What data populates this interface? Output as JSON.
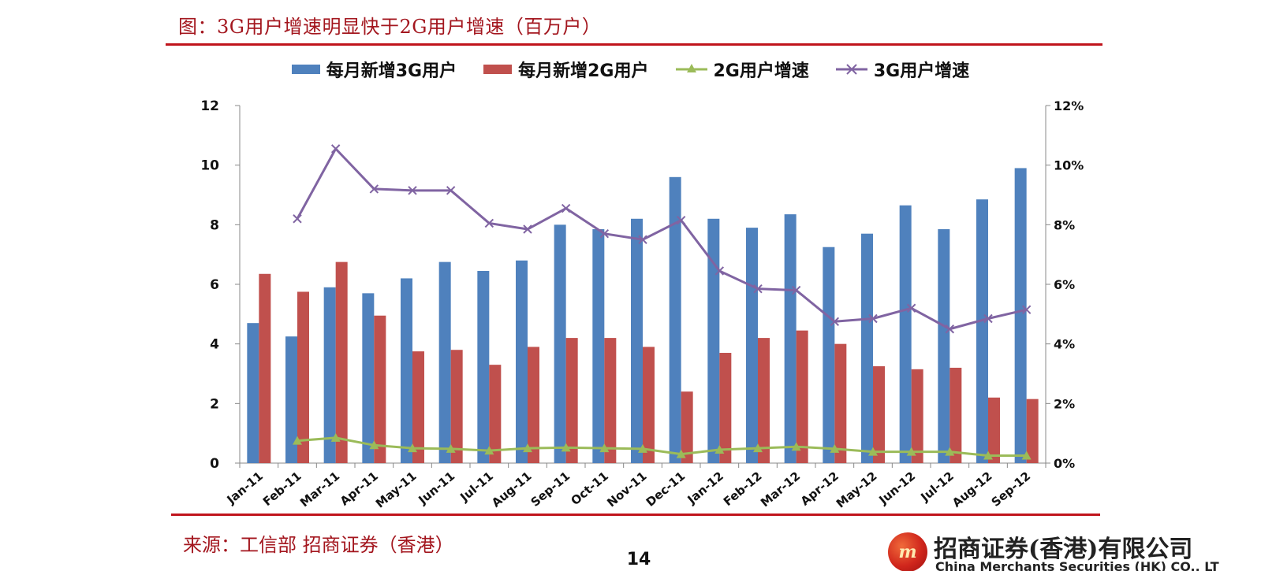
{
  "title": "图：3G用户增速明显快于2G用户增速（百万户）",
  "source": "来源：工信部 招商证券（香港）",
  "page_number": "14",
  "brand": {
    "logo_text": "m",
    "name_cn": "招商证券(香港)有限公司",
    "name_en": "China Merchants Securities (HK) CO., LTD."
  },
  "colors": {
    "bar_3g": "#4f81bd",
    "bar_2g": "#c0504d",
    "line_2g": "#9bbb59",
    "line_3g": "#8064a2",
    "accent": "#c0141c"
  },
  "chart_data": {
    "type": "bar",
    "title": "",
    "categories": [
      "Jan-11",
      "Feb-11",
      "Mar-11",
      "Apr-11",
      "May-11",
      "Jun-11",
      "Jul-11",
      "Aug-11",
      "Sep-11",
      "Oct-11",
      "Nov-11",
      "Dec-11",
      "Jan-12",
      "Feb-12",
      "Mar-12",
      "Apr-12",
      "May-12",
      "Jun-12",
      "Jul-12",
      "Aug-12",
      "Sep-12"
    ],
    "series": [
      {
        "name": "每月新增3G用户",
        "kind": "bar",
        "axis": "left",
        "values": [
          4.7,
          4.25,
          5.9,
          5.7,
          6.2,
          6.75,
          6.45,
          6.8,
          8.0,
          7.85,
          8.2,
          9.6,
          8.2,
          7.9,
          8.35,
          7.25,
          7.7,
          8.65,
          7.85,
          8.85,
          9.9
        ]
      },
      {
        "name": "每月新增2G用户",
        "kind": "bar",
        "axis": "left",
        "values": [
          6.35,
          5.75,
          6.75,
          4.95,
          3.75,
          3.8,
          3.3,
          3.9,
          4.2,
          4.2,
          3.9,
          2.4,
          3.7,
          4.2,
          4.45,
          4.0,
          3.25,
          3.15,
          3.2,
          2.2,
          2.15
        ]
      },
      {
        "name": "2G用户增速",
        "kind": "line",
        "axis": "right",
        "marker": "triangle",
        "values": [
          null,
          0.75,
          0.85,
          0.6,
          0.5,
          0.48,
          0.42,
          0.5,
          0.52,
          0.5,
          0.48,
          0.3,
          0.45,
          0.5,
          0.55,
          0.48,
          0.38,
          0.38,
          0.38,
          0.25,
          0.25
        ]
      },
      {
        "name": "3G用户增速",
        "kind": "line",
        "axis": "right",
        "marker": "x",
        "values": [
          null,
          8.2,
          10.55,
          9.2,
          9.15,
          9.15,
          8.05,
          7.85,
          8.55,
          7.7,
          7.5,
          8.15,
          6.45,
          5.85,
          5.8,
          4.75,
          4.85,
          5.2,
          4.5,
          4.85,
          5.15
        ]
      }
    ],
    "ylim_left": [
      0,
      12
    ],
    "yticks_left": [
      0,
      2,
      4,
      6,
      8,
      10,
      12
    ],
    "ylim_right": [
      0,
      12
    ],
    "yticks_right_labels": [
      "0%",
      "2%",
      "4%",
      "6%",
      "8%",
      "10%",
      "12%"
    ],
    "legend_position": "top",
    "grid": false
  }
}
